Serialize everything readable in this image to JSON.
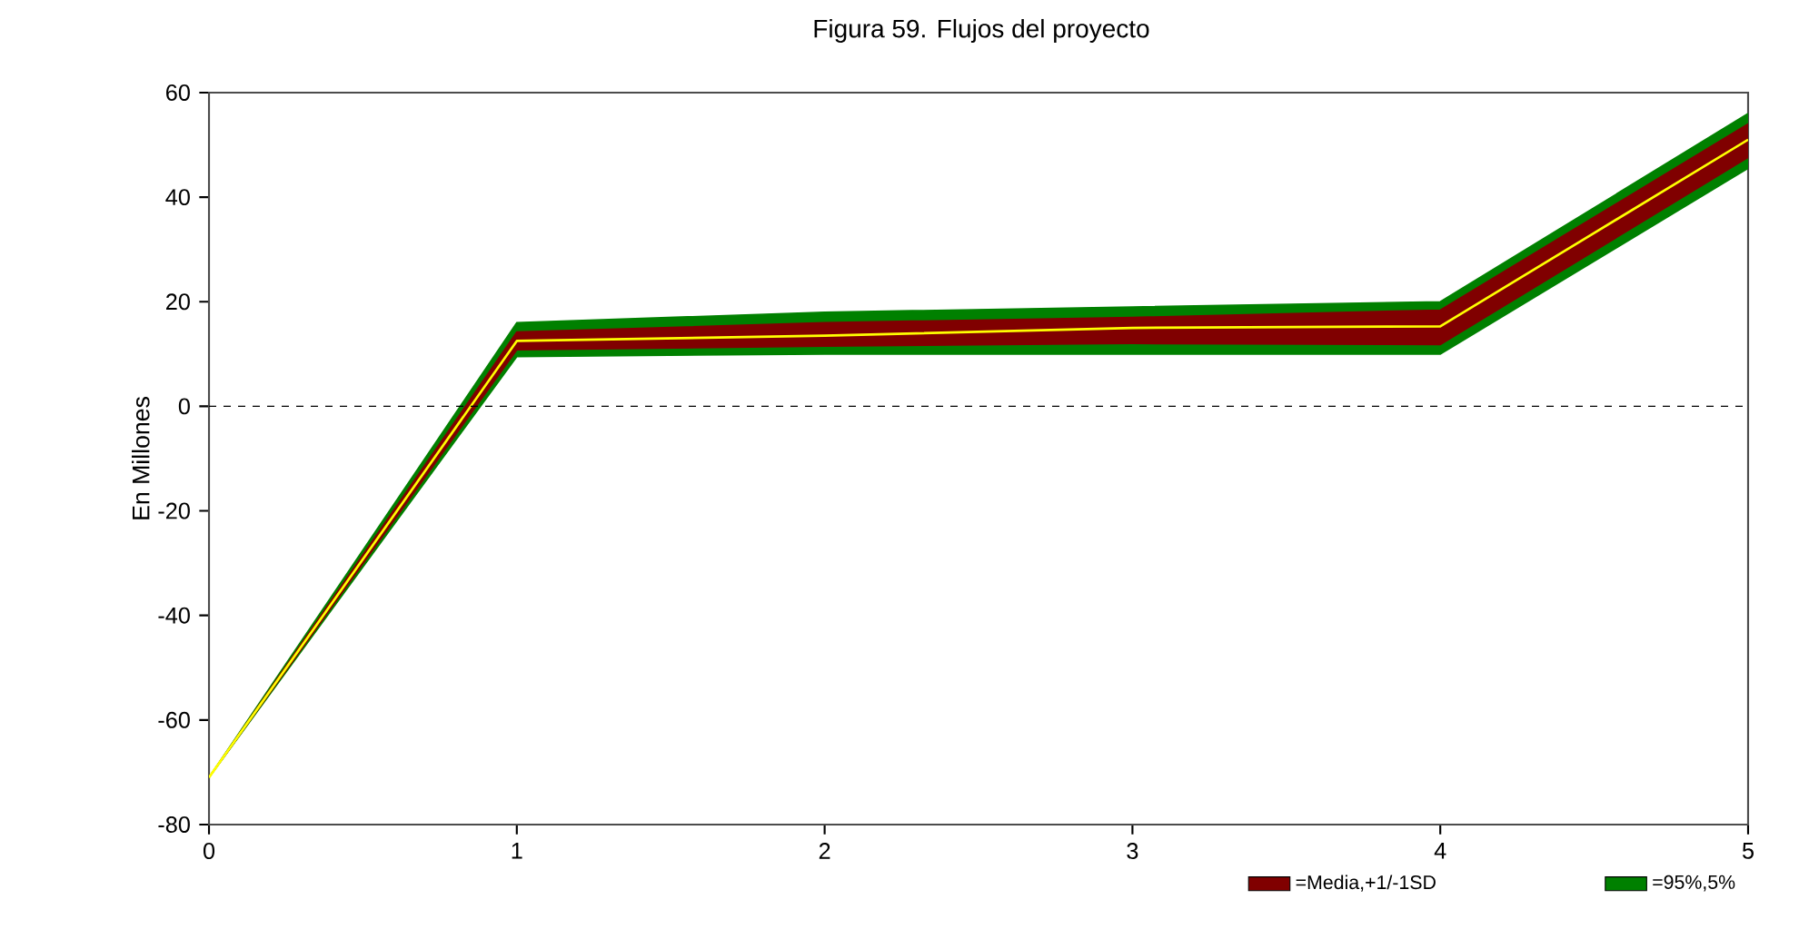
{
  "chart_data": {
    "type": "line",
    "title": "Figura 59. Flujos del proyecto",
    "ylabel": "En Millones",
    "x": [
      0,
      1,
      2,
      3,
      4,
      5
    ],
    "series": [
      {
        "name": "=Media,+1/-1SD",
        "color": "#800000",
        "values": [
          null,
          null,
          null,
          null,
          null,
          null
        ],
        "lower": [
          -71,
          10.8,
          11.5,
          12,
          11.8,
          47.6
        ],
        "upper": [
          -71,
          14.2,
          16,
          17,
          18.4,
          54
        ]
      },
      {
        "color": "#ffff00",
        "values": [
          -71,
          12.5,
          13.5,
          15,
          15.3,
          51
        ]
      },
      {
        "name": "=95%,5%",
        "color": "#008000",
        "values": [
          null,
          null,
          null,
          null,
          null,
          null
        ],
        "lower": [
          -71,
          9.5,
          10,
          10,
          10,
          45.5
        ],
        "upper": [
          -71,
          16,
          18,
          19,
          20,
          56
        ]
      }
    ],
    "xlim": [
      0,
      5
    ],
    "ylim": [
      -80,
      60
    ],
    "xticks": [
      0,
      1,
      2,
      3,
      4,
      5
    ],
    "yticks": [
      -80,
      -60,
      -40,
      -20,
      0,
      20,
      40,
      60
    ],
    "ref_lines": [
      {
        "axis": "y",
        "value": 0,
        "color": "#000000",
        "line_style": "dashed"
      }
    ],
    "grid": false,
    "legend": "bottom right",
    "marker": "none",
    "line_style": "solid"
  }
}
